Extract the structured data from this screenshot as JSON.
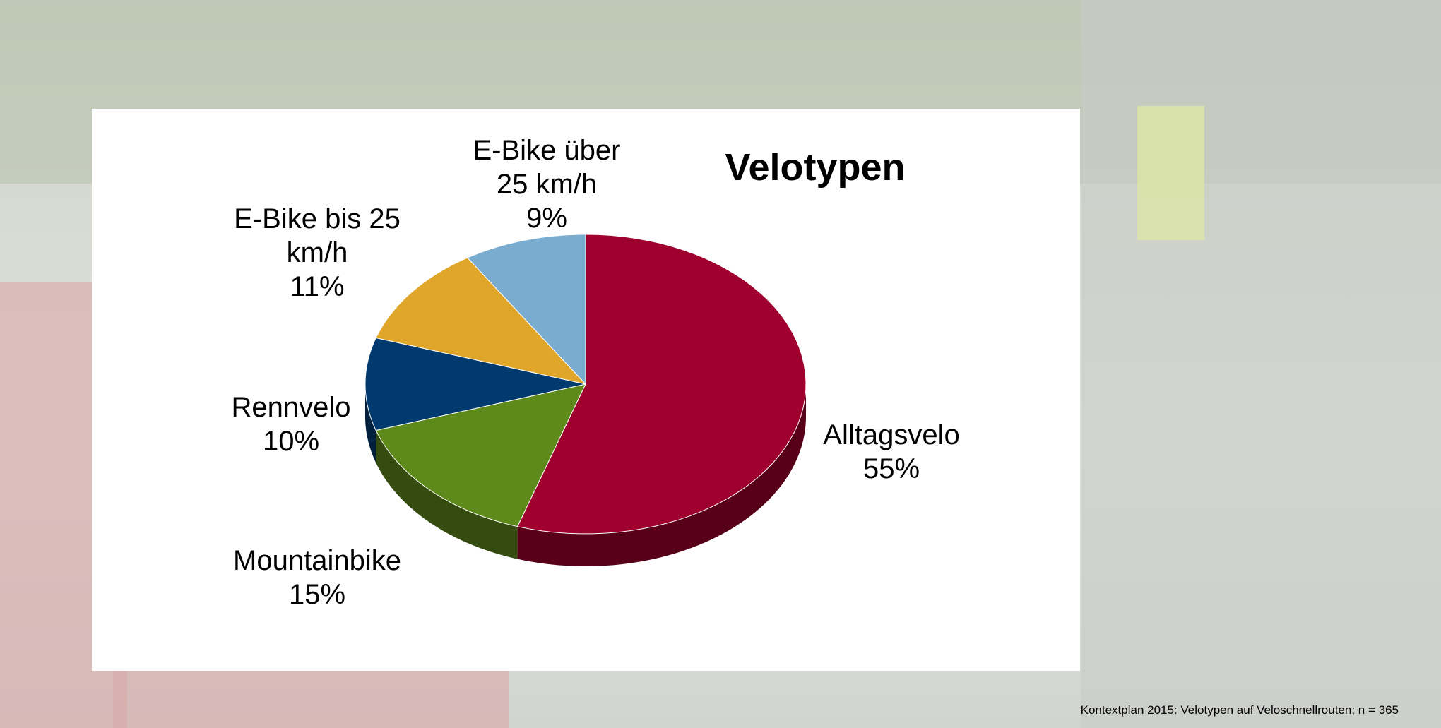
{
  "chart_data": {
    "type": "pie",
    "title": "Velotypen",
    "categories": [
      "Alltagsvelo",
      "Mountainbike",
      "Rennvelo",
      "E-Bike bis 25 km/h",
      "E-Bike über 25 km/h"
    ],
    "values": [
      55,
      15,
      10,
      11,
      9
    ],
    "value_labels": [
      "55%",
      "15%",
      "10%",
      "11%",
      "9%"
    ],
    "colors": [
      "#a0002e",
      "#5e8a1c",
      "#003a6e",
      "#e0a62a",
      "#7aaccf"
    ],
    "note": "Kontextplan 2015: Velotypen auf Veloschnellrouten; n = 365"
  }
}
